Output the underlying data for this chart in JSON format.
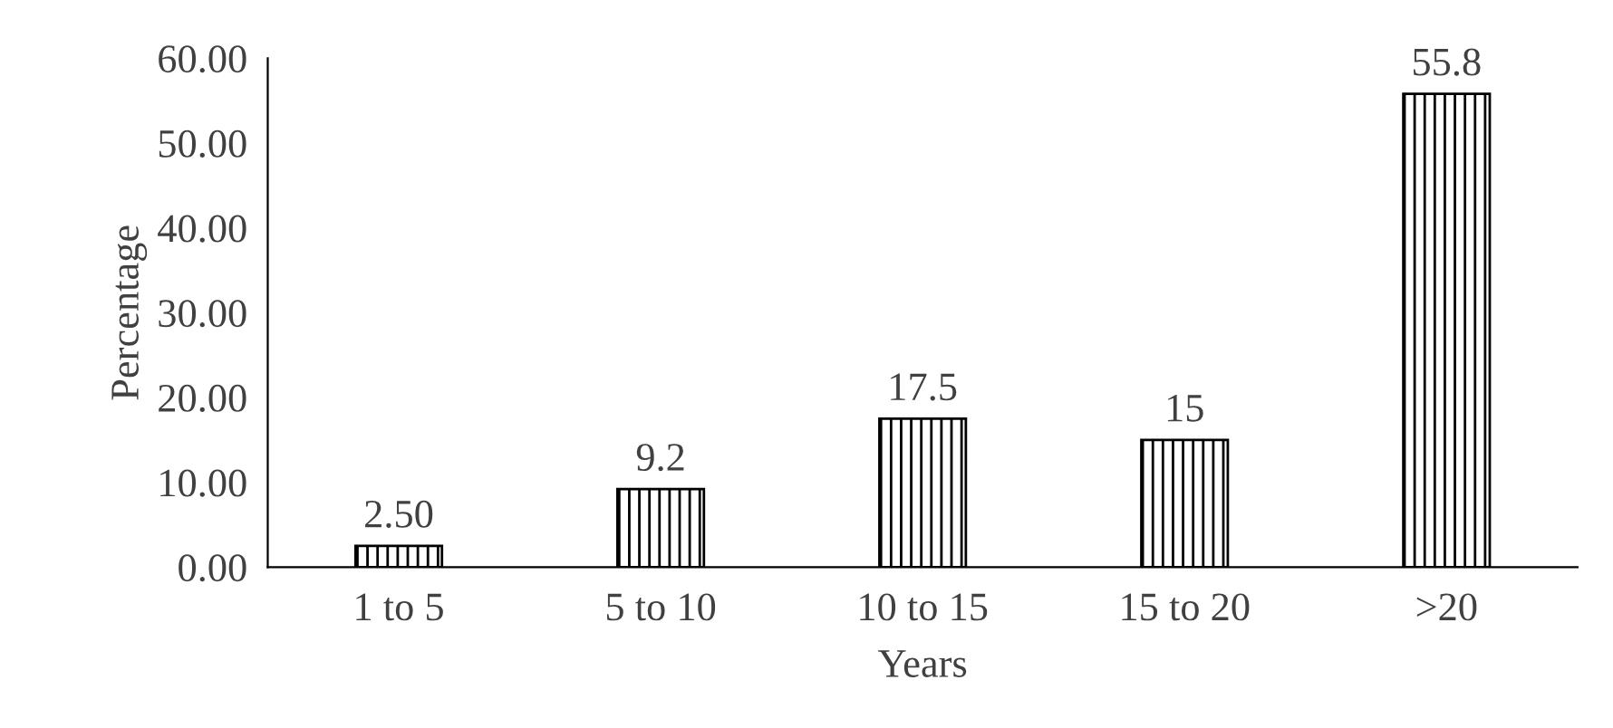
{
  "chart_data": {
    "type": "bar",
    "xlabel": "Years",
    "ylabel": "Percentage",
    "categories": [
      "1 to 5",
      "5 to 10",
      "10 to 15",
      "15 to 20",
      ">20"
    ],
    "values": [
      2.5,
      9.2,
      17.5,
      15,
      55.8
    ],
    "value_labels": [
      "2.50",
      "9.2",
      "17.5",
      "15",
      "55.8"
    ],
    "color": "#000000",
    "ylim": [
      0,
      60
    ],
    "yticks": [
      {
        "value": 0,
        "label": "0.00"
      },
      {
        "value": 10,
        "label": "10.00"
      },
      {
        "value": 20,
        "label": "20.00"
      },
      {
        "value": 30,
        "label": "30.00"
      },
      {
        "value": 40,
        "label": "40.00"
      },
      {
        "value": 50,
        "label": "50.00"
      },
      {
        "value": 60,
        "label": "60.00"
      }
    ],
    "grid": false
  }
}
